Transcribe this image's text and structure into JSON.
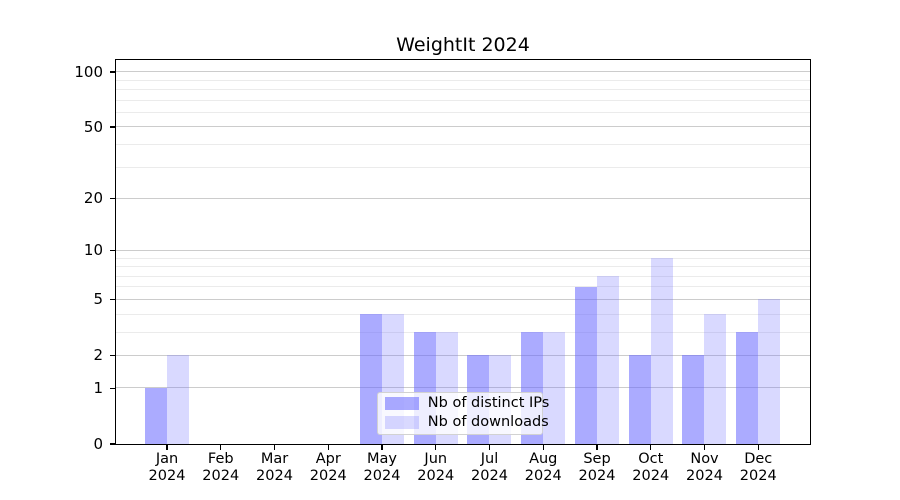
{
  "title": "WeightIt 2024",
  "chart_data": {
    "type": "bar",
    "title": "WeightIt 2024",
    "categories": [
      "Jan 2024",
      "Feb 2024",
      "Mar 2024",
      "Apr 2024",
      "May 2024",
      "Jun 2024",
      "Jul 2024",
      "Aug 2024",
      "Sep 2024",
      "Oct 2024",
      "Nov 2024",
      "Dec 2024"
    ],
    "x_tick_months": [
      "Jan",
      "Feb",
      "Mar",
      "Apr",
      "May",
      "Jun",
      "Jul",
      "Aug",
      "Sep",
      "Oct",
      "Nov",
      "Dec"
    ],
    "x_tick_year": "2024",
    "series": [
      {
        "name": "Nb of distinct IPs",
        "color": "rgba(102,102,255,0.55)",
        "values": [
          1,
          0,
          0,
          0,
          4,
          3,
          2,
          3,
          6,
          2,
          2,
          3
        ]
      },
      {
        "name": "Nb of downloads",
        "color": "rgba(102,102,255,0.25)",
        "values": [
          2,
          0,
          0,
          0,
          4,
          3,
          2,
          3,
          7,
          9,
          4,
          5
        ]
      }
    ],
    "yscale": "log10(1+x)",
    "ylim": [
      0,
      117
    ],
    "yticks_major": [
      0,
      1,
      2,
      5,
      10,
      20,
      50,
      100
    ],
    "yticks_minor": [
      3,
      4,
      6,
      7,
      8,
      9,
      30,
      40,
      60,
      70,
      80,
      90
    ],
    "grid": true,
    "legend_position": "lower center"
  },
  "colors": {
    "bar_distinct_ips": "rgba(102,102,255,0.55)",
    "bar_downloads": "rgba(102,102,255,0.25)",
    "grid_major": "#cccccc",
    "grid_minor": "#ebebeb",
    "axis_frame": "#000000",
    "legend_border": "#d2d2d2",
    "legend_background": "rgba(255,255,255,0.8)"
  }
}
